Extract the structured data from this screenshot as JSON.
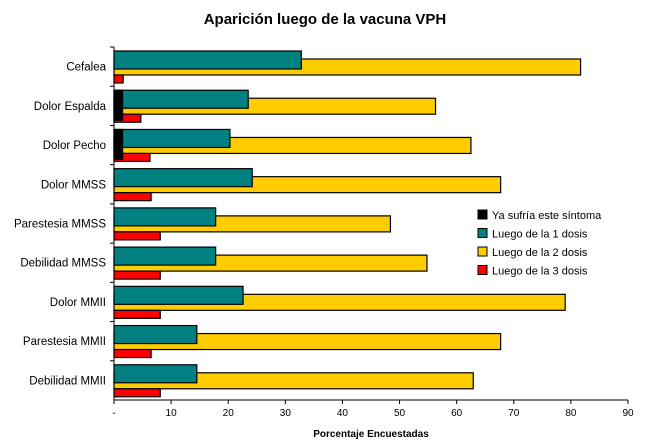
{
  "chart_data": {
    "type": "bar",
    "orientation": "horizontal",
    "title": "Aparición luego de la vacuna VPH",
    "xlabel": "Porcentaje Encuestadas",
    "ylabel": "",
    "xlim": [
      0,
      90
    ],
    "x_ticks": [
      0,
      10,
      20,
      30,
      40,
      50,
      60,
      70,
      80,
      90
    ],
    "x_tick_labels": [
      "-",
      "10",
      "20",
      "30",
      "40",
      "50",
      "60",
      "70",
      "80",
      "90"
    ],
    "grid": false,
    "legend_position": "right",
    "categories": [
      "Cefalea",
      "Dolor Espalda",
      "Dolor Pecho",
      "Dolor MMSS",
      "Parestesia MMSS",
      "Debilidad MMSS",
      "Dolor MMII",
      "Parestesia MMII",
      "Debilidad MMII"
    ],
    "series": [
      {
        "name": "Ya sufría este síntoma",
        "color": "#000000",
        "values": [
          0,
          1.5,
          1.5,
          0,
          0,
          0,
          0,
          0,
          0
        ]
      },
      {
        "name": "Luego de la 1 dosis",
        "color": "#008080",
        "values": [
          32.8,
          23.5,
          20.3,
          24.2,
          17.8,
          17.8,
          22.6,
          14.5,
          14.5
        ]
      },
      {
        "name": "Luego de la 2 dosis",
        "color": "#FFCC00",
        "values": [
          81.7,
          56.3,
          62.5,
          67.7,
          48.4,
          54.8,
          79.0,
          67.7,
          62.9
        ]
      },
      {
        "name": "Luego de la 3 dosis",
        "color": "#FF0000",
        "values": [
          1.6,
          4.7,
          6.3,
          6.5,
          8.1,
          8.1,
          8.1,
          6.5,
          8.1
        ]
      }
    ]
  }
}
